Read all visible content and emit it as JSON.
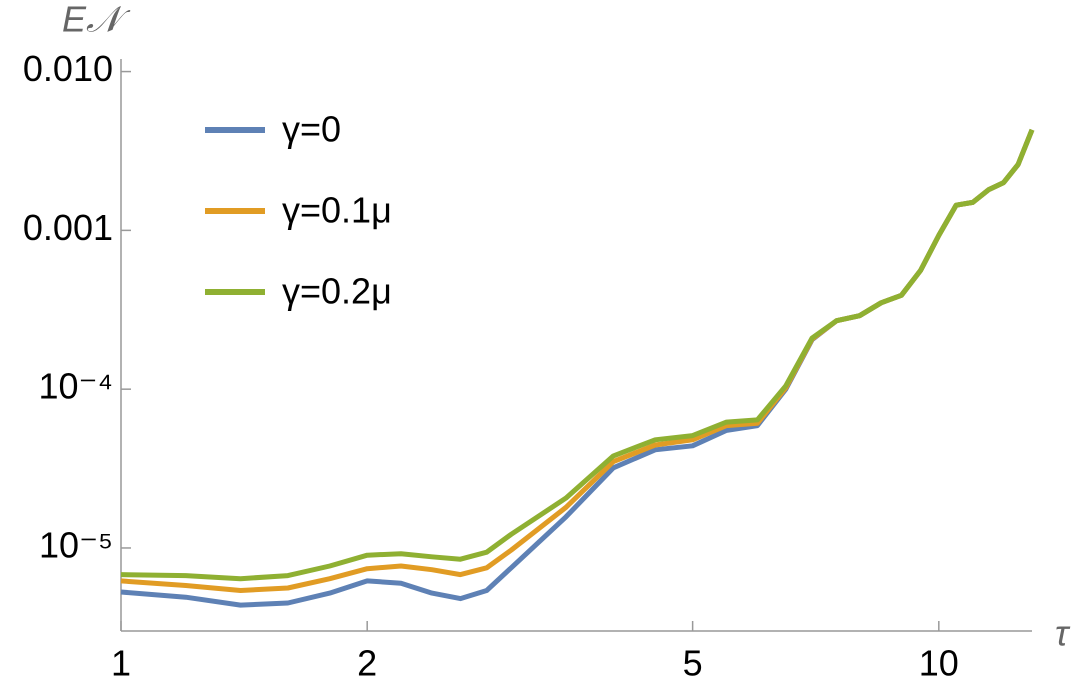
{
  "chart_data": {
    "type": "line",
    "x_label": "τ",
    "y_label": "E𝒩",
    "xscale": "log",
    "yscale": "log",
    "xlim": [
      1,
      13
    ],
    "ylim": [
      3e-06,
      0.012
    ],
    "xticks": [
      1,
      2,
      5,
      10
    ],
    "yticks": [
      {
        "value": 0.01,
        "label": "0.010"
      },
      {
        "value": 0.001,
        "label": "0.001"
      },
      {
        "value": 0.0001,
        "label": "10⁻⁴"
      },
      {
        "value": 1e-05,
        "label": "10⁻⁵"
      }
    ],
    "legend": "upper left",
    "x": [
      1,
      1.2,
      1.4,
      1.6,
      1.8,
      2,
      2.2,
      2.4,
      2.6,
      2.8,
      3,
      3.5,
      4,
      4.5,
      5,
      5.5,
      6,
      6.5,
      7,
      7.5,
      8,
      8.5,
      9,
      9.5,
      10,
      10.5,
      11,
      11.5,
      12,
      12.5,
      13
    ],
    "series": [
      {
        "name": "γ=0",
        "color": "#5e81b5",
        "values": [
          5.28e-06,
          4.9e-06,
          4.37e-06,
          4.5e-06,
          5.2e-06,
          6.2e-06,
          6e-06,
          5.2e-06,
          4.8e-06,
          5.4e-06,
          7.5e-06,
          1.57e-05,
          3.2e-05,
          4.15e-05,
          4.4e-05,
          5.5e-05,
          5.9e-05,
          0.0001,
          0.000205,
          0.00027,
          0.00029,
          0.00035,
          0.00039,
          0.00056,
          0.00093,
          0.00144,
          0.0015,
          0.0018,
          0.002,
          0.0026,
          0.0043
        ]
      },
      {
        "name": "γ=0.1μ",
        "color": "#e19c24",
        "values": [
          6.2e-06,
          5.8e-06,
          5.4e-06,
          5.6e-06,
          6.4e-06,
          7.4e-06,
          7.7e-06,
          7.3e-06,
          6.8e-06,
          7.5e-06,
          9.7e-06,
          1.8e-05,
          3.5e-05,
          4.45e-05,
          4.8e-05,
          5.9e-05,
          6.1e-05,
          0.000102,
          0.000207,
          0.00027,
          0.00029,
          0.00035,
          0.00039,
          0.00056,
          0.00093,
          0.00144,
          0.0015,
          0.0018,
          0.002,
          0.0026,
          0.0043
        ]
      },
      {
        "name": "γ=0.2μ",
        "color": "#8fb032",
        "values": [
          6.8e-06,
          6.7e-06,
          6.4e-06,
          6.7e-06,
          7.7e-06,
          9e-06,
          9.2e-06,
          8.8e-06,
          8.5e-06,
          9.4e-06,
          1.22e-05,
          2.06e-05,
          3.8e-05,
          4.8e-05,
          5.1e-05,
          6.2e-05,
          6.4e-05,
          0.000105,
          0.00021,
          0.00027,
          0.00029,
          0.00035,
          0.00039,
          0.00056,
          0.00093,
          0.00144,
          0.0015,
          0.0018,
          0.002,
          0.0026,
          0.0043
        ]
      }
    ]
  }
}
